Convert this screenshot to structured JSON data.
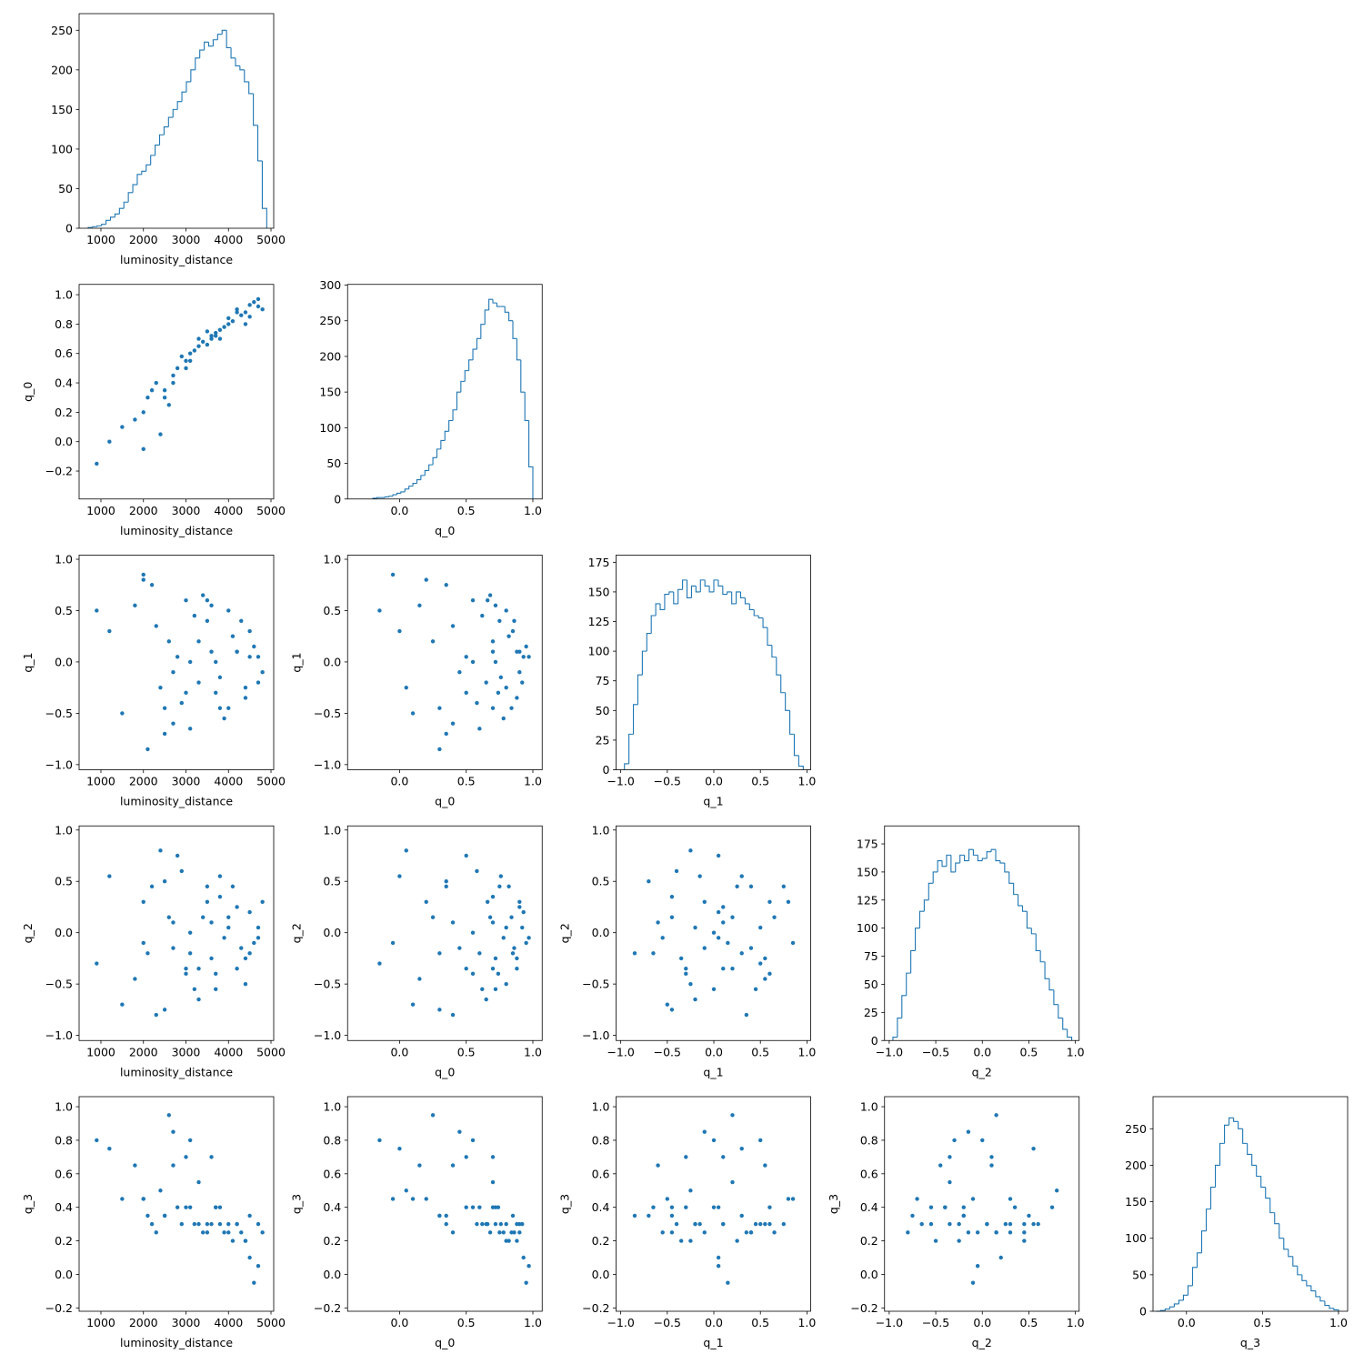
{
  "chart_data": {
    "type": "corner",
    "color": "#1f77b4",
    "parameters": [
      {
        "name": "luminosity_distance",
        "lim": [
          487,
          5064
        ],
        "xticks": [
          1000,
          2000,
          3000,
          4000,
          5000
        ],
        "count_lim": [
          0,
          271
        ],
        "count_ticks": [
          0,
          50,
          100,
          150,
          200,
          250
        ],
        "bins": [
          700,
          805,
          910,
          1015,
          1120,
          1225,
          1330,
          1435,
          1540,
          1645,
          1750,
          1855,
          1960,
          2065,
          2170,
          2275,
          2380,
          2485,
          2590,
          2695,
          2800,
          2905,
          3010,
          3115,
          3220,
          3325,
          3430,
          3535,
          3640,
          3745,
          3850,
          3955,
          4060,
          4165,
          4270,
          4375,
          4480,
          4585,
          4690,
          4795,
          4900
        ],
        "counts": [
          1,
          2,
          3,
          5,
          10,
          14,
          18,
          25,
          33,
          45,
          55,
          68,
          72,
          80,
          92,
          105,
          118,
          128,
          140,
          150,
          160,
          172,
          185,
          200,
          215,
          225,
          235,
          230,
          238,
          245,
          250,
          228,
          215,
          205,
          200,
          185,
          170,
          130,
          85,
          25
        ],
        "samples": [
          4500,
          3800,
          4200,
          3000,
          2500,
          4700,
          3500,
          2000,
          3300,
          4000,
          1500,
          2800,
          4400,
          3700,
          3100,
          2300,
          4600,
          3900,
          2700,
          3400,
          1200,
          4100,
          3600,
          2900,
          4800,
          2100,
          3200,
          4300,
          2600,
          3800,
          1800,
          4500,
          3000,
          3500,
          2400,
          4000,
          3300,
          2200,
          4700,
          3700,
          900,
          2700,
          4200,
          3100,
          2000,
          4400,
          3600,
          2500
        ]
      },
      {
        "name": "q_0",
        "lim": [
          -0.39,
          1.07
        ],
        "xticks": [
          {
            "value": 0,
            "label": "0.0"
          },
          {
            "value": 0.5,
            "label": "0.5"
          },
          {
            "value": 1,
            "label": "1.0"
          }
        ],
        "yticks": [
          {
            "value": -0.2,
            "label": "−0.2"
          },
          {
            "value": 0,
            "label": "0.0"
          },
          {
            "value": 0.2,
            "label": "0.2"
          },
          {
            "value": 0.4,
            "label": "0.4"
          },
          {
            "value": 0.6,
            "label": "0.6"
          },
          {
            "value": 0.8,
            "label": "0.8"
          },
          {
            "value": 1,
            "label": "1.0"
          }
        ],
        "count_lim": [
          0,
          301
        ],
        "count_ticks": [
          0,
          50,
          100,
          150,
          200,
          250,
          300
        ],
        "bins": [
          -0.2,
          -0.17,
          -0.14,
          -0.11,
          -0.08,
          -0.05,
          -0.02,
          0.01,
          0.04,
          0.07,
          0.1,
          0.13,
          0.16,
          0.19,
          0.22,
          0.25,
          0.28,
          0.31,
          0.34,
          0.37,
          0.4,
          0.43,
          0.46,
          0.49,
          0.52,
          0.55,
          0.58,
          0.61,
          0.64,
          0.67,
          0.7,
          0.73,
          0.76,
          0.79,
          0.82,
          0.85,
          0.88,
          0.91,
          0.94,
          0.97,
          1.0
        ],
        "counts": [
          1,
          2,
          2,
          3,
          4,
          6,
          8,
          10,
          14,
          18,
          22,
          27,
          33,
          40,
          48,
          58,
          70,
          82,
          95,
          110,
          125,
          150,
          165,
          180,
          195,
          210,
          225,
          245,
          265,
          280,
          275,
          270,
          270,
          262,
          250,
          225,
          195,
          150,
          110,
          45
        ],
        "samples": [
          0.85,
          0.7,
          0.9,
          0.55,
          0.35,
          0.92,
          0.75,
          0.2,
          0.65,
          0.8,
          0.1,
          0.5,
          0.88,
          0.72,
          0.6,
          0.4,
          0.95,
          0.78,
          0.45,
          0.68,
          0.0,
          0.82,
          0.7,
          0.58,
          0.9,
          0.3,
          0.62,
          0.86,
          0.25,
          0.76,
          0.15,
          0.93,
          0.5,
          0.66,
          0.05,
          0.84,
          0.7,
          0.35,
          0.97,
          0.74,
          -0.15,
          0.4,
          0.88,
          0.55,
          -0.05,
          0.8,
          0.72,
          0.3
        ]
      },
      {
        "name": "q_1",
        "lim": [
          -1.05,
          1.04
        ],
        "xticks": [
          {
            "value": -1,
            "label": "−1.0"
          },
          {
            "value": -0.5,
            "label": "−0.5"
          },
          {
            "value": 0,
            "label": "0.0"
          },
          {
            "value": 0.5,
            "label": "0.5"
          },
          {
            "value": 1,
            "label": "1.0"
          }
        ],
        "count_lim": [
          0,
          181
        ],
        "count_ticks": [
          0,
          25,
          50,
          75,
          100,
          125,
          150,
          175
        ],
        "bins": [
          -0.96,
          -0.912,
          -0.864,
          -0.816,
          -0.768,
          -0.72,
          -0.672,
          -0.624,
          -0.576,
          -0.528,
          -0.48,
          -0.432,
          -0.384,
          -0.336,
          -0.288,
          -0.24,
          -0.192,
          -0.144,
          -0.096,
          -0.048,
          0,
          0.048,
          0.096,
          0.144,
          0.192,
          0.24,
          0.288,
          0.336,
          0.384,
          0.432,
          0.48,
          0.528,
          0.576,
          0.624,
          0.672,
          0.72,
          0.768,
          0.816,
          0.864,
          0.912,
          0.96
        ],
        "counts": [
          5,
          30,
          55,
          80,
          100,
          115,
          130,
          140,
          135,
          148,
          150,
          140,
          152,
          160,
          145,
          155,
          150,
          160,
          155,
          150,
          160,
          155,
          148,
          150,
          140,
          150,
          145,
          140,
          135,
          130,
          128,
          120,
          105,
          95,
          80,
          65,
          50,
          30,
          12,
          3
        ],
        "samples": [
          0.3,
          -0.45,
          0.1,
          0.6,
          -0.7,
          -0.2,
          0.4,
          0.8,
          -0.2,
          0.5,
          -0.5,
          0.05,
          -0.35,
          0.0,
          -0.65,
          0.35,
          0.15,
          -0.55,
          -0.1,
          0.65,
          0.3,
          0.25,
          0.1,
          -0.4,
          -0.1,
          -0.85,
          0.45,
          0.4,
          0.2,
          -0.15,
          0.55,
          0.05,
          -0.3,
          0.6,
          -0.25,
          -0.45,
          0.2,
          0.75,
          0.05,
          -0.3,
          0.5,
          -0.6,
          0.1,
          0.0,
          0.85,
          -0.25,
          0.55,
          -0.45
        ]
      },
      {
        "name": "q_2",
        "lim": [
          -1.05,
          1.04
        ],
        "xticks": [
          {
            "value": -1,
            "label": "−1.0"
          },
          {
            "value": -0.5,
            "label": "−0.5"
          },
          {
            "value": 0,
            "label": "0.0"
          },
          {
            "value": 0.5,
            "label": "0.5"
          },
          {
            "value": 1,
            "label": "1.0"
          }
        ],
        "count_lim": [
          0,
          191
        ],
        "count_ticks": [
          0,
          25,
          50,
          75,
          100,
          125,
          150,
          175
        ],
        "bins": [
          -0.96,
          -0.912,
          -0.864,
          -0.816,
          -0.768,
          -0.72,
          -0.672,
          -0.624,
          -0.576,
          -0.528,
          -0.48,
          -0.432,
          -0.384,
          -0.336,
          -0.288,
          -0.24,
          -0.192,
          -0.144,
          -0.096,
          -0.048,
          0,
          0.048,
          0.096,
          0.144,
          0.192,
          0.24,
          0.288,
          0.336,
          0.384,
          0.432,
          0.48,
          0.528,
          0.576,
          0.624,
          0.672,
          0.72,
          0.768,
          0.816,
          0.864,
          0.912,
          0.96
        ],
        "counts": [
          3,
          20,
          40,
          60,
          80,
          100,
          115,
          125,
          140,
          150,
          160,
          155,
          165,
          150,
          158,
          165,
          160,
          170,
          165,
          160,
          162,
          168,
          170,
          160,
          158,
          150,
          140,
          130,
          120,
          115,
          100,
          95,
          80,
          70,
          55,
          45,
          32,
          20,
          10,
          3
        ],
        "samples": [
          -0.2,
          0.35,
          0.25,
          -0.4,
          0.5,
          0.05,
          0.45,
          0.3,
          -0.65,
          0.05,
          -0.7,
          0.75,
          -0.25,
          -0.55,
          -0.2,
          -0.8,
          -0.1,
          -0.05,
          -0.15,
          0.15,
          0.55,
          0.45,
          0.1,
          0.6,
          0.3,
          -0.2,
          -0.55,
          -0.15,
          0.15,
          0.55,
          -0.45,
          0.2,
          -0.35,
          0.3,
          0.8,
          0.15,
          -0.35,
          0.45,
          -0.05,
          -0.4,
          -0.3,
          0.1,
          -0.35,
          0.0,
          -0.1,
          -0.5,
          -0.25,
          -0.75
        ]
      },
      {
        "name": "q_3",
        "lim": [
          -0.22,
          1.06
        ],
        "xticks": [
          {
            "value": 0,
            "label": "0.0"
          },
          {
            "value": 0.5,
            "label": "0.5"
          },
          {
            "value": 1,
            "label": "1.0"
          }
        ],
        "yticks": [
          {
            "value": -0.2,
            "label": "−0.2"
          },
          {
            "value": 0,
            "label": "0.0"
          },
          {
            "value": 0.2,
            "label": "0.2"
          },
          {
            "value": 0.4,
            "label": "0.4"
          },
          {
            "value": 0.6,
            "label": "0.6"
          },
          {
            "value": 0.8,
            "label": "0.8"
          },
          {
            "value": 1,
            "label": "1.0"
          }
        ],
        "count_lim": [
          0,
          294
        ],
        "count_ticks": [
          0,
          50,
          100,
          150,
          200,
          250
        ],
        "bins": [
          -0.2,
          -0.17,
          -0.14,
          -0.11,
          -0.08,
          -0.05,
          -0.02,
          0.01,
          0.04,
          0.07,
          0.1,
          0.13,
          0.16,
          0.19,
          0.22,
          0.25,
          0.28,
          0.31,
          0.34,
          0.37,
          0.4,
          0.43,
          0.46,
          0.49,
          0.52,
          0.55,
          0.58,
          0.61,
          0.64,
          0.67,
          0.7,
          0.73,
          0.76,
          0.79,
          0.82,
          0.85,
          0.88,
          0.91,
          0.94,
          0.97,
          1.0
        ],
        "counts": [
          0,
          1,
          3,
          6,
          10,
          15,
          22,
          35,
          60,
          80,
          110,
          140,
          170,
          200,
          230,
          255,
          265,
          260,
          250,
          230,
          215,
          200,
          185,
          170,
          155,
          135,
          120,
          100,
          85,
          75,
          62,
          50,
          42,
          35,
          28,
          20,
          14,
          8,
          4,
          2
        ],
        "samples": [
          0.35,
          0.4,
          0.3,
          0.4,
          0.35,
          0.3,
          0.25,
          0.45,
          0.3,
          0.3,
          0.45,
          0.4,
          0.2,
          0.4,
          0.4,
          0.25,
          -0.05,
          0.25,
          0.85,
          0.25,
          0.75,
          0.2,
          0.7,
          0.3,
          0.25,
          0.35,
          0.3,
          0.25,
          0.95,
          0.3,
          0.65,
          0.1,
          0.7,
          0.3,
          0.5,
          0.25,
          0.55,
          0.3,
          0.05,
          0.4,
          0.8,
          0.65,
          0.3,
          0.8,
          0.45,
          0.2,
          0.3,
          0.35
        ]
      }
    ]
  }
}
